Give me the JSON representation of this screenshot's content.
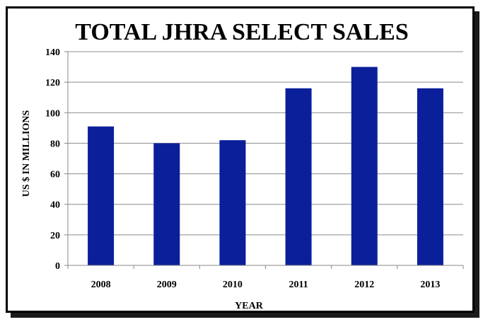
{
  "chart_data": {
    "type": "bar",
    "title": "TOTAL JHRA SELECT SALES",
    "xlabel": "YEAR",
    "ylabel": "US $ IN MILLIONS",
    "categories": [
      "2008",
      "2009",
      "2010",
      "2011",
      "2012",
      "2013"
    ],
    "values": [
      91,
      80,
      82,
      116,
      130,
      116
    ],
    "ylim": [
      0,
      140
    ],
    "yticks": [
      0,
      20,
      40,
      60,
      80,
      100,
      120,
      140
    ],
    "grid": true,
    "legend": "none",
    "bar_color": "#0a1f99"
  }
}
